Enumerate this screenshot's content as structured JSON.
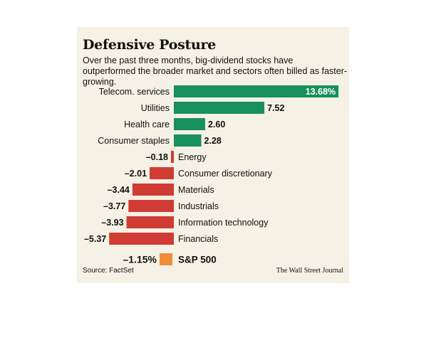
{
  "title": "Defensive Posture",
  "subtitle": "Over the past three months, big-dividend stocks have outperformed the broader market and sectors often billed as faster-growing.",
  "source": "Source: FactSet",
  "credit": "The Wall Street Journal",
  "colors": {
    "positive": "#17905b",
    "negative": "#d03b33",
    "benchmark": "#f08c3a",
    "background": "#f5f1e4"
  },
  "chart_data": {
    "type": "bar",
    "orientation": "horizontal",
    "categories": [
      "Telecom. services",
      "Utilities",
      "Health care",
      "Consumer staples",
      "Energy",
      "Consumer discretionary",
      "Materials",
      "Industrials",
      "Information technology",
      "Financials"
    ],
    "values": [
      13.68,
      7.52,
      2.6,
      2.28,
      -0.18,
      -2.01,
      -3.44,
      -3.77,
      -3.93,
      -5.37
    ],
    "value_labels": [
      "13.68%",
      "7.52",
      "2.60",
      "2.28",
      "–0.18",
      "–2.01",
      "–3.44",
      "–3.77",
      "–3.93",
      "–5.37"
    ],
    "benchmark": {
      "name": "S&P 500",
      "value": -1.15,
      "label": "–1.15%"
    }
  }
}
